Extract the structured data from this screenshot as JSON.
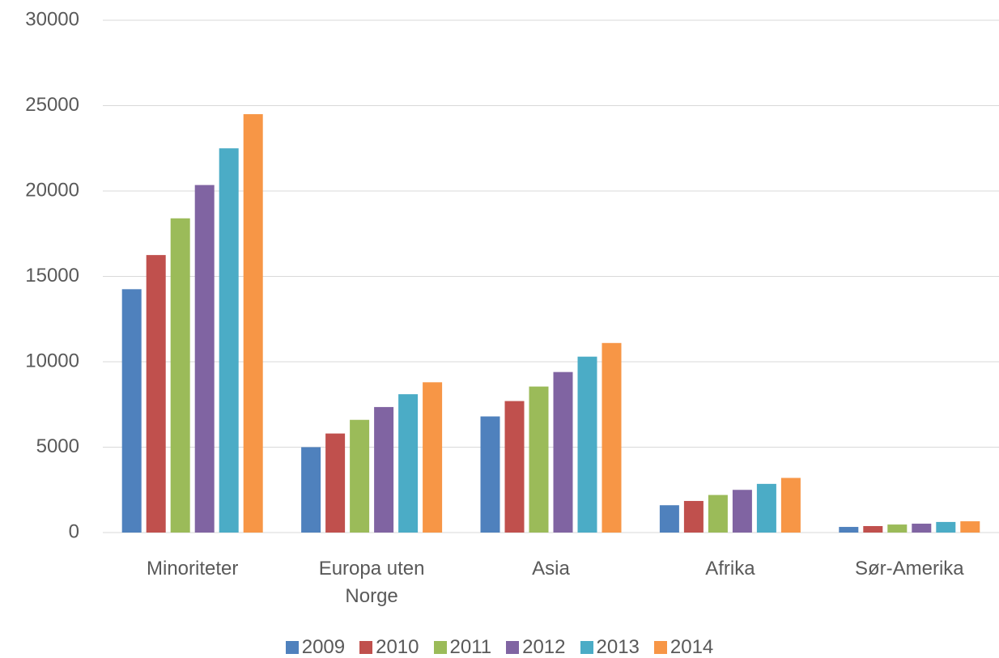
{
  "chart_data": {
    "type": "bar",
    "categories": [
      "Minoriteter",
      "Europa uten Norge",
      "Asia",
      "Afrika",
      "Sør-Amerika"
    ],
    "series": [
      {
        "name": "2009",
        "color": "#4f81bd",
        "values": [
          14250,
          5000,
          6800,
          1600,
          330
        ]
      },
      {
        "name": "2010",
        "color": "#c0504d",
        "values": [
          16250,
          5800,
          7700,
          1850,
          380
        ]
      },
      {
        "name": "2011",
        "color": "#9bbb59",
        "values": [
          18400,
          6600,
          8550,
          2200,
          470
        ]
      },
      {
        "name": "2012",
        "color": "#8064a2",
        "values": [
          20350,
          7350,
          9400,
          2500,
          520
        ]
      },
      {
        "name": "2013",
        "color": "#4bacc6",
        "values": [
          22500,
          8100,
          10300,
          2850,
          620
        ]
      },
      {
        "name": "2014",
        "color": "#f79646",
        "values": [
          24500,
          8800,
          11100,
          3200,
          660
        ]
      }
    ],
    "ylim": [
      0,
      30000
    ],
    "yticks": [
      0,
      5000,
      10000,
      15000,
      20000,
      25000,
      30000
    ],
    "grid": true,
    "legend": "bottom"
  }
}
